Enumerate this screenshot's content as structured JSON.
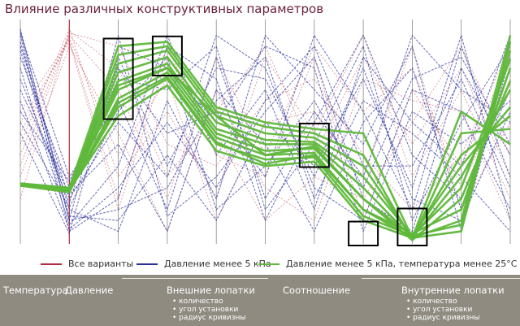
{
  "chart_data": {
    "type": "parallel_coordinates",
    "title": "Влияние различных конструктивных параметров",
    "axes_count": 11,
    "series": [
      {
        "name": "Все варианты",
        "color": "#b22a3c"
      },
      {
        "name": "Давление менее 5 кПа",
        "color": "#2a2f9a"
      },
      {
        "name": "Давление менее 5 кПа, температура менее 25°С",
        "color": "#5fb83a"
      }
    ],
    "green_lines": [
      [
        0.27,
        0.24,
        0.58,
        0.72,
        0.42,
        0.35,
        0.37,
        0.1,
        0.02,
        0.05,
        0.92
      ],
      [
        0.27,
        0.24,
        0.62,
        0.75,
        0.45,
        0.38,
        0.39,
        0.12,
        0.03,
        0.08,
        0.88
      ],
      [
        0.26,
        0.23,
        0.66,
        0.78,
        0.48,
        0.4,
        0.41,
        0.15,
        0.04,
        0.15,
        0.8
      ],
      [
        0.26,
        0.24,
        0.7,
        0.8,
        0.5,
        0.42,
        0.43,
        0.2,
        0.01,
        0.2,
        0.74
      ],
      [
        0.27,
        0.25,
        0.74,
        0.82,
        0.52,
        0.45,
        0.45,
        0.25,
        0.02,
        0.3,
        0.7
      ],
      [
        0.27,
        0.24,
        0.78,
        0.85,
        0.55,
        0.47,
        0.46,
        0.3,
        0.03,
        0.35,
        0.62
      ],
      [
        0.26,
        0.23,
        0.82,
        0.88,
        0.58,
        0.5,
        0.48,
        0.35,
        0.02,
        0.4,
        0.58
      ],
      [
        0.26,
        0.24,
        0.86,
        0.9,
        0.6,
        0.53,
        0.5,
        0.4,
        0.01,
        0.5,
        0.52
      ],
      [
        0.27,
        0.25,
        0.9,
        0.92,
        0.62,
        0.55,
        0.52,
        0.5,
        0.02,
        0.6,
        0.45
      ],
      [
        0.26,
        0.24,
        0.72,
        0.8,
        0.58,
        0.4,
        0.44,
        0.2,
        0.03,
        0.25,
        0.84
      ],
      [
        0.27,
        0.24,
        0.64,
        0.76,
        0.46,
        0.36,
        0.4,
        0.15,
        0.02,
        0.1,
        0.95
      ]
    ],
    "blue_lines": [
      [
        0.98,
        0.1,
        0.95,
        0.12,
        0.3,
        0.6,
        0.85,
        0.2,
        0.05,
        0.8,
        0.4
      ],
      [
        0.95,
        0.05,
        0.2,
        0.9,
        0.75,
        0.1,
        0.55,
        0.95,
        0.4,
        0.2,
        0.7
      ],
      [
        0.9,
        0.2,
        0.55,
        0.3,
        0.95,
        0.8,
        0.25,
        0.1,
        0.7,
        0.6,
        0.15
      ],
      [
        0.92,
        0.15,
        0.05,
        0.65,
        0.2,
        0.95,
        0.7,
        0.45,
        0.9,
        0.05,
        0.85
      ],
      [
        0.85,
        0.25,
        0.8,
        0.5,
        0.6,
        0.3,
        0.95,
        0.6,
        0.15,
        0.9,
        0.3
      ],
      [
        0.8,
        0.08,
        0.35,
        0.95,
        0.4,
        0.7,
        0.15,
        0.85,
        0.55,
        0.35,
        0.95
      ],
      [
        0.96,
        0.3,
        0.65,
        0.15,
        0.85,
        0.2,
        0.6,
        0.3,
        0.95,
        0.7,
        0.55
      ],
      [
        0.88,
        0.12,
        0.1,
        0.4,
        0.1,
        0.55,
        0.35,
        0.75,
        0.25,
        0.95,
        0.1
      ],
      [
        0.75,
        0.18,
        0.9,
        0.8,
        0.55,
        0.9,
        0.8,
        0.05,
        0.6,
        0.45,
        0.65
      ],
      [
        0.7,
        0.22,
        0.45,
        0.05,
        0.7,
        0.45,
        0.05,
        0.55,
        0.8,
        0.15,
        0.8
      ],
      [
        0.65,
        0.06,
        0.25,
        0.55,
        0.25,
        0.65,
        0.9,
        0.35,
        0.35,
        0.75,
        0.25
      ],
      [
        0.6,
        0.28,
        0.75,
        0.7,
        0.9,
        0.15,
        0.45,
        0.9,
        0.1,
        0.55,
        0.9
      ],
      [
        0.97,
        0.1,
        0.15,
        0.25,
        0.65,
        0.85,
        0.2,
        0.65,
        0.5,
        0.3,
        0.05
      ],
      [
        0.55,
        0.16,
        0.6,
        0.85,
        0.15,
        0.35,
        0.65,
        0.25,
        0.75,
        0.85,
        0.45
      ],
      [
        0.5,
        0.04,
        0.85,
        0.35,
        0.8,
        0.75,
        0.3,
        0.8,
        0.2,
        0.1,
        0.6
      ]
    ],
    "red_lines": [
      [
        0.45,
        0.98,
        0.3,
        0.6,
        0.2,
        0.85,
        0.5,
        0.95,
        0.3,
        0.7,
        0.2
      ],
      [
        0.35,
        0.95,
        0.7,
        0.2,
        0.85,
        0.4,
        0.9,
        0.6,
        0.8,
        0.25,
        0.75
      ],
      [
        0.55,
        0.92,
        0.15,
        0.85,
        0.5,
        0.1,
        0.3,
        0.2,
        0.55,
        0.9,
        0.4
      ],
      [
        0.4,
        0.96,
        0.9,
        0.45,
        0.35,
        0.65,
        0.75,
        0.4,
        0.15,
        0.4,
        0.9
      ],
      [
        0.3,
        0.9,
        0.5,
        0.05,
        0.7,
        0.25,
        0.1,
        0.75,
        0.65,
        0.6,
        0.1
      ],
      [
        0.5,
        0.94,
        0.4,
        0.75,
        0.1,
        0.55,
        0.6,
        0.3,
        0.9,
        0.15,
        0.55
      ],
      [
        0.2,
        0.97,
        0.8,
        0.3,
        0.6,
        0.9,
        0.4,
        0.85,
        0.45,
        0.8,
        0.3
      ],
      [
        0.6,
        0.93,
        0.2,
        0.9,
        0.4,
        0.3,
        0.85,
        0.1,
        0.7,
        0.35,
        0.85
      ]
    ],
    "highlight_boxes": [
      {
        "axis": 2,
        "from": 0.58,
        "to": 0.92
      },
      {
        "axis": 3,
        "from": 0.78,
        "to": 0.93
      },
      {
        "axis": 6,
        "from": 0.36,
        "to": 0.53
      },
      {
        "axis": 7,
        "from": 0.0,
        "to": 0.08
      },
      {
        "axis": 8,
        "from": 0.0,
        "to": 0.14
      }
    ]
  },
  "legend": {
    "all": "Все варианты",
    "pressure": "Давление менее 5 кПа",
    "pressure_temp": "Давление менее 5 кПа, температура менее 25°С"
  },
  "footer": {
    "temp": "Температура",
    "pressure": "Давление",
    "outer": "Внешние лопатки",
    "outer_items": [
      "количество",
      "угол установки",
      "радиус кривизны"
    ],
    "ratio": "Соотношение",
    "inner": "Внутренние лопатки",
    "inner_items": [
      "количество",
      "угол установки",
      "радиус кривизны"
    ]
  }
}
